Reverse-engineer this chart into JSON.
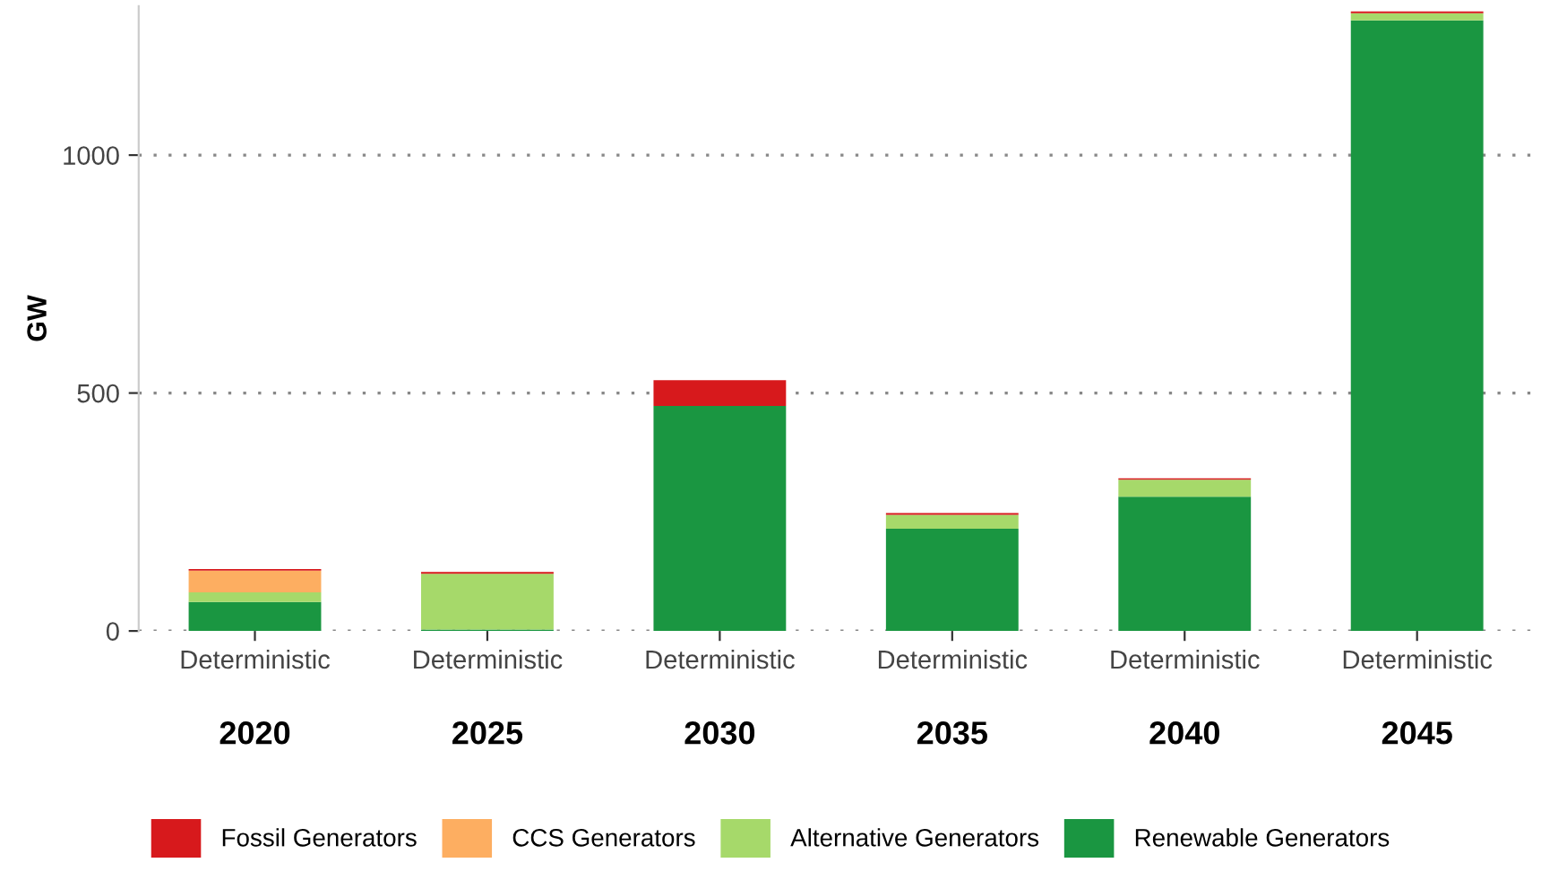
{
  "chart_data": {
    "type": "bar",
    "stacked": true,
    "ylabel": "GW",
    "categories": [
      "Deterministic",
      "Deterministic",
      "Deterministic",
      "Deterministic",
      "Deterministic",
      "Deterministic"
    ],
    "annotations": [
      "2020",
      "2025",
      "2030",
      "2035",
      "2040",
      "2045"
    ],
    "series": [
      {
        "name": "Renewable Generators",
        "color": "#1a9641",
        "values": [
          61,
          3,
          473,
          215,
          282,
          1283
        ]
      },
      {
        "name": "Alternative Generators",
        "color": "#a6d96a",
        "values": [
          20,
          117,
          0,
          29,
          36,
          15
        ]
      },
      {
        "name": "CCS Generators",
        "color": "#fdae61",
        "values": [
          46,
          0,
          0,
          0,
          0,
          0
        ]
      },
      {
        "name": "Fossil Generators",
        "color": "#d7191c",
        "values": [
          3,
          4,
          54,
          4,
          3,
          4
        ]
      }
    ],
    "ylim": [
      0,
      1313
    ],
    "yticks": [
      0,
      500,
      1000
    ],
    "grid": "y",
    "legend": "bottom"
  }
}
